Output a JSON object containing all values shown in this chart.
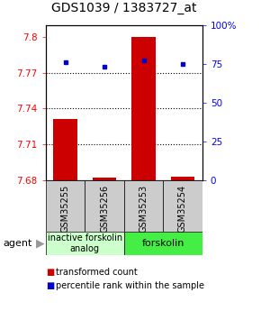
{
  "title": "GDS1039 / 1383727_at",
  "samples": [
    "GSM35255",
    "GSM35256",
    "GSM35253",
    "GSM35254"
  ],
  "bar_values": [
    7.731,
    7.682,
    7.8,
    7.683
  ],
  "bar_baseline": 7.68,
  "percentile_values": [
    76,
    73,
    77,
    75
  ],
  "ylim_left": [
    7.68,
    7.81
  ],
  "ylim_right": [
    0,
    100
  ],
  "yticks_left": [
    7.68,
    7.71,
    7.74,
    7.77,
    7.8
  ],
  "yticks_right": [
    0,
    25,
    50,
    75,
    100
  ],
  "ytick_labels_left": [
    "7.68",
    "7.71",
    "7.74",
    "7.77",
    "7.8"
  ],
  "ytick_labels_right": [
    "0",
    "25",
    "50",
    "75",
    "100%"
  ],
  "hlines": [
    7.77,
    7.74,
    7.71
  ],
  "bar_color": "#cc0000",
  "dot_color": "#0000cc",
  "agent_label": "agent",
  "group1_label": "inactive forskolin\nanalog",
  "group2_label": "forskolin",
  "group1_color": "#ccffcc",
  "group2_color": "#44ee44",
  "legend_bar_label": "transformed count",
  "legend_dot_label": "percentile rank within the sample",
  "bar_width": 0.6,
  "sample_box_color": "#cccccc",
  "title_fontsize": 10,
  "tick_fontsize": 7.5,
  "sample_fontsize": 7,
  "group_fontsize": 7,
  "legend_fontsize": 7
}
